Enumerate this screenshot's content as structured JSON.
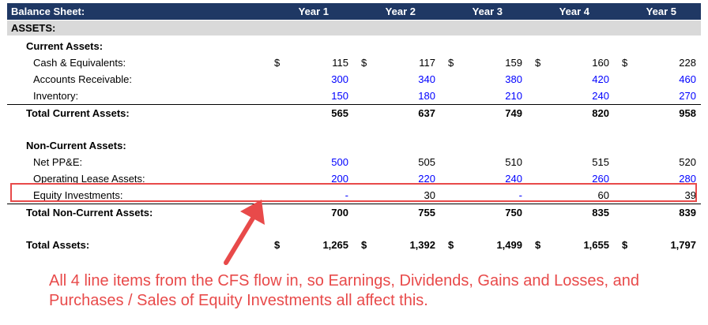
{
  "header": {
    "title": "Balance Sheet:",
    "years": [
      "Year 1",
      "Year 2",
      "Year 3",
      "Year 4",
      "Year 5"
    ]
  },
  "section": "ASSETS:",
  "rows": [
    {
      "label": "Current Assets:",
      "bold": true,
      "indent": 1,
      "values": []
    },
    {
      "label": "Cash & Equivalents:",
      "indent": 2,
      "currency": "$",
      "values": [
        "115",
        "117",
        "159",
        "160",
        "228"
      ]
    },
    {
      "label": "Accounts Receivable:",
      "indent": 2,
      "blue": true,
      "values": [
        "300",
        "340",
        "380",
        "420",
        "460"
      ]
    },
    {
      "label": "Inventory:",
      "indent": 2,
      "blue": true,
      "values": [
        "150",
        "180",
        "210",
        "240",
        "270"
      ]
    },
    {
      "label": "Total Current Assets:",
      "bold": true,
      "indent": 1,
      "topline": true,
      "values": [
        "565",
        "637",
        "749",
        "820",
        "958"
      ]
    },
    {
      "label": "",
      "values": []
    },
    {
      "label": "Non-Current Assets:",
      "bold": true,
      "indent": 1,
      "values": []
    },
    {
      "label": "Net PP&E:",
      "indent": 2,
      "blue_cols": [
        0
      ],
      "values": [
        "500",
        "505",
        "510",
        "515",
        "520"
      ]
    },
    {
      "label": "Operating Lease Assets:",
      "indent": 2,
      "blue": true,
      "values": [
        "200",
        "220",
        "240",
        "260",
        "280"
      ]
    },
    {
      "label": "Equity Investments:",
      "indent": 2,
      "blue_cols": [
        0,
        2
      ],
      "values": [
        "-",
        "30",
        "-",
        "60",
        "39"
      ]
    },
    {
      "label": "Total Non-Current Assets:",
      "bold": true,
      "indent": 1,
      "topline": true,
      "values": [
        "700",
        "755",
        "750",
        "835",
        "839"
      ]
    },
    {
      "label": "",
      "values": []
    },
    {
      "label": "Total Assets:",
      "bold": true,
      "indent": 1,
      "currency": "$",
      "values": [
        "1,265",
        "1,392",
        "1,499",
        "1,655",
        "1,797"
      ]
    }
  ],
  "annotation": {
    "text": "All 4 line items from the CFS flow in, so Earnings, Dividends, Gains and Losses, and Purchases / Sales of Equity Investments all affect this.",
    "color": "#e84a4a"
  },
  "colors": {
    "header_bg": "#1f3864",
    "section_bg": "#d9d9d9",
    "input_blue": "#0000ff"
  }
}
